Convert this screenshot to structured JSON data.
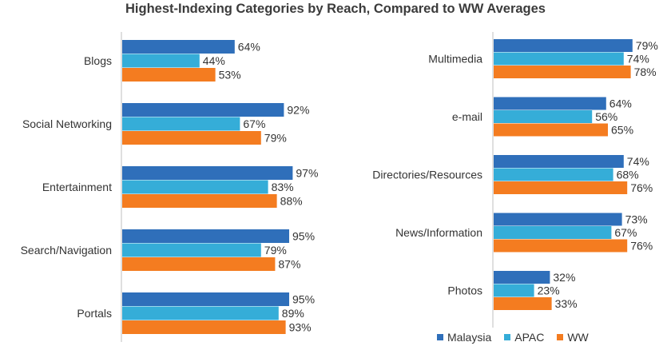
{
  "title": "Highest-Indexing Categories by Reach, Compared to WW Averages",
  "legend": [
    {
      "name": "Malaysia",
      "color": "#2f6fba"
    },
    {
      "name": "APAC",
      "color": "#35add8"
    },
    {
      "name": "WW",
      "color": "#f47c20"
    }
  ],
  "chart_data": [
    {
      "type": "bar",
      "orientation": "horizontal",
      "categories": [
        "Blogs",
        "Social Networking",
        "Entertainment",
        "Search/Navigation",
        "Portals"
      ],
      "series": [
        {
          "name": "Malaysia",
          "values": [
            64,
            92,
            97,
            95,
            95
          ]
        },
        {
          "name": "APAC",
          "values": [
            44,
            67,
            83,
            79,
            89
          ]
        },
        {
          "name": "WW",
          "values": [
            53,
            79,
            88,
            87,
            93
          ]
        }
      ],
      "value_suffix": "%",
      "xlim": [
        0,
        100
      ]
    },
    {
      "type": "bar",
      "orientation": "horizontal",
      "categories": [
        "Multimedia",
        "e-mail",
        "Directories/Resources",
        "News/Information",
        "Photos"
      ],
      "series": [
        {
          "name": "Malaysia",
          "values": [
            79,
            64,
            74,
            73,
            32
          ]
        },
        {
          "name": "APAC",
          "values": [
            74,
            56,
            68,
            67,
            23
          ]
        },
        {
          "name": "WW",
          "values": [
            78,
            65,
            76,
            76,
            33
          ]
        }
      ],
      "value_suffix": "%",
      "xlim": [
        0,
        100
      ]
    }
  ]
}
